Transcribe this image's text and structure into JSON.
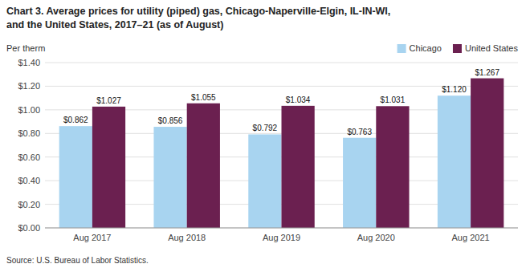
{
  "chart_data": {
    "type": "bar",
    "title": "Chart 3. Average prices for utility (piped) gas, Chicago-Naperville-Elgin,  IL-IN-WI,",
    "subtitle": "and the United States, 2017–21 (as of August)",
    "y_label": "Per therm",
    "source": "Source:  U.S. Bureau of Labor Statistics.",
    "categories": [
      "Aug 2017",
      "Aug 2018",
      "Aug 2019",
      "Aug 2020",
      "Aug 2021"
    ],
    "series": [
      {
        "name": "Chicago",
        "color": "#a8d4f0",
        "values": [
          0.862,
          0.856,
          0.792,
          0.763,
          1.12
        ],
        "value_labels": [
          "$0.862",
          "$0.856",
          "$0.792",
          "$0.763",
          "$1.120"
        ]
      },
      {
        "name": "United States",
        "color": "#6b2050",
        "values": [
          1.027,
          1.055,
          1.034,
          1.031,
          1.267
        ],
        "value_labels": [
          "$1.027",
          "$1.055",
          "$1.034",
          "$1.031",
          "$1.267"
        ]
      }
    ],
    "ylim": [
      0,
      1.4
    ],
    "yticks": [
      {
        "value": 0.0,
        "label": "$0.00"
      },
      {
        "value": 0.2,
        "label": "$0.20"
      },
      {
        "value": 0.4,
        "label": "$0.40"
      },
      {
        "value": 0.6,
        "label": "$0.60"
      },
      {
        "value": 0.8,
        "label": "$0.80"
      },
      {
        "value": 1.0,
        "label": "$1.00"
      },
      {
        "value": 1.2,
        "label": "$1.20"
      },
      {
        "value": 1.4,
        "label": "$1.40"
      }
    ],
    "grid": true,
    "legend": "upper right",
    "data_labels": true
  }
}
